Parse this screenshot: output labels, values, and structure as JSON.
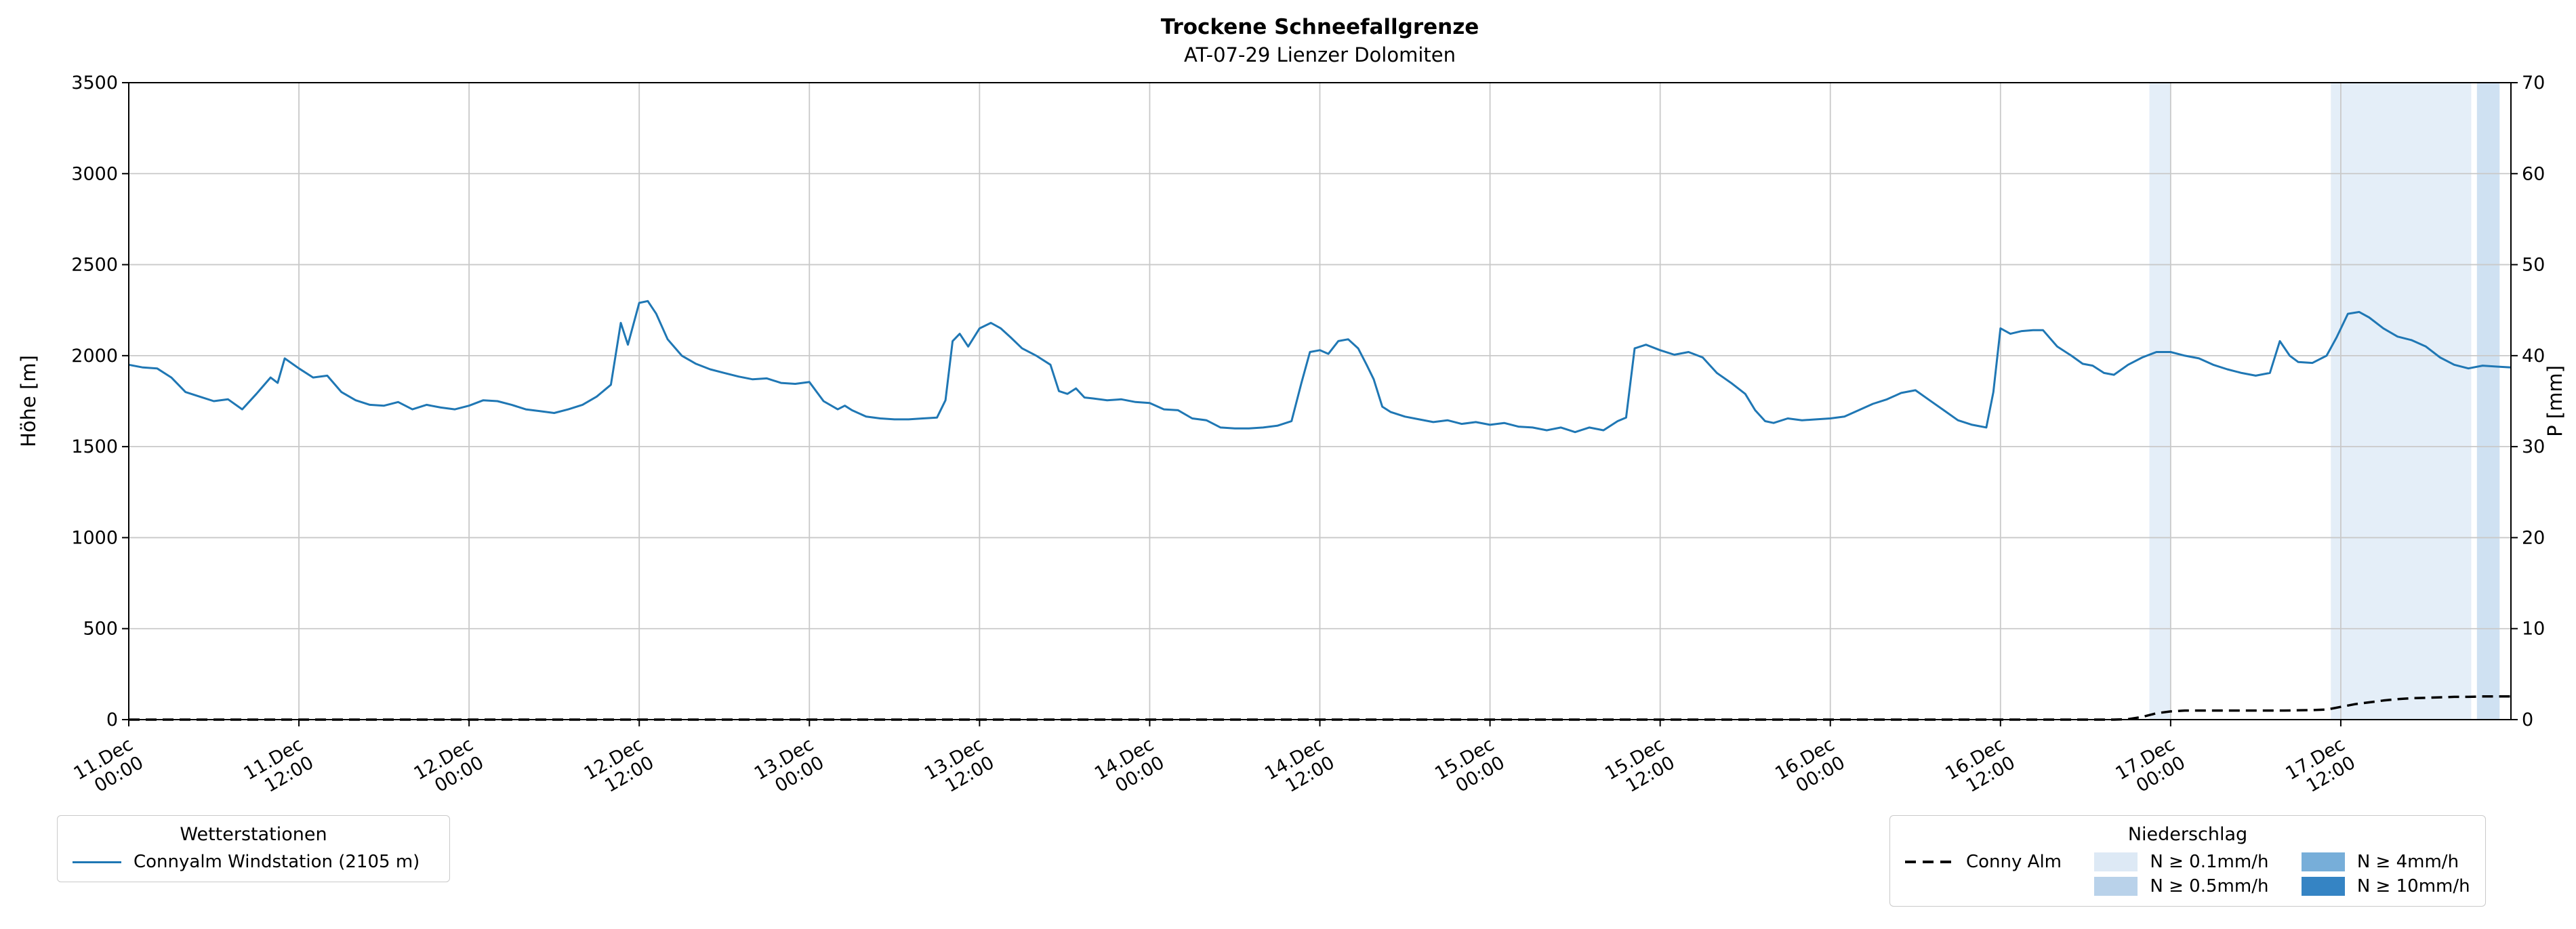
{
  "chart": {
    "title": "Trockene Schneefallgrenze",
    "subtitle": "AT-07-29 Lienzer Dolomiten"
  },
  "axes": {
    "y_left_label": "Höhe [m]",
    "y_right_label": "P [mm]"
  },
  "legend_stations": {
    "title": "Wetterstationen",
    "items": [
      {
        "label": "Connyalm Windstation (2105 m)",
        "color": "#1f77b4"
      }
    ]
  },
  "legend_precip": {
    "title": "Niederschlag",
    "line_item": {
      "label": "Conny Alm",
      "color": "#000000"
    },
    "patches": [
      {
        "label": "N ≥ 0.1mm/h",
        "color": "#dde9f5"
      },
      {
        "label": "N ≥ 0.5mm/h",
        "color": "#b9d2ea"
      },
      {
        "label": "N ≥ 4mm/h",
        "color": "#77aed9"
      },
      {
        "label": "N ≥ 10mm/h",
        "color": "#3584c4"
      }
    ]
  },
  "chart_data": {
    "type": "line",
    "title": "Trockene Schneefallgrenze",
    "subtitle": "AT-07-29 Lienzer Dolomiten",
    "grid": true,
    "legend_position": "below",
    "x_unit": "hours since 11.Dec 00:00",
    "x_range": [
      0,
      168
    ],
    "x_ticks": [
      {
        "h": 0,
        "label": "11.Dec 00:00"
      },
      {
        "h": 12,
        "label": "11.Dec 12:00"
      },
      {
        "h": 24,
        "label": "12.Dec 00:00"
      },
      {
        "h": 36,
        "label": "12.Dec 12:00"
      },
      {
        "h": 48,
        "label": "13.Dec 00:00"
      },
      {
        "h": 60,
        "label": "13.Dec 12:00"
      },
      {
        "h": 72,
        "label": "14.Dec 00:00"
      },
      {
        "h": 84,
        "label": "14.Dec 12:00"
      },
      {
        "h": 96,
        "label": "15.Dec 00:00"
      },
      {
        "h": 108,
        "label": "15.Dec 12:00"
      },
      {
        "h": 120,
        "label": "16.Dec 00:00"
      },
      {
        "h": 132,
        "label": "16.Dec 12:00"
      },
      {
        "h": 144,
        "label": "17.Dec 00:00"
      },
      {
        "h": 156,
        "label": "17.Dec 12:00"
      }
    ],
    "y_left": {
      "label": "Höhe [m]",
      "range": [
        0,
        3500
      ],
      "tick_step": 500
    },
    "y_right": {
      "label": "P [mm]",
      "range": [
        0,
        70
      ],
      "tick_step": 10
    },
    "series": [
      {
        "name": "Connyalm Windstation (2105 m)",
        "axis": "left",
        "unit": "m",
        "color": "#1f77b4",
        "style": "solid",
        "points": [
          [
            0,
            1950
          ],
          [
            1,
            1935
          ],
          [
            2,
            1930
          ],
          [
            3,
            1880
          ],
          [
            4,
            1800
          ],
          [
            5,
            1775
          ],
          [
            6,
            1750
          ],
          [
            7,
            1760
          ],
          [
            8,
            1705
          ],
          [
            9,
            1790
          ],
          [
            10,
            1880
          ],
          [
            10.5,
            1850
          ],
          [
            11,
            1985
          ],
          [
            12,
            1930
          ],
          [
            13,
            1880
          ],
          [
            14,
            1890
          ],
          [
            15,
            1800
          ],
          [
            16,
            1755
          ],
          [
            17,
            1730
          ],
          [
            18,
            1725
          ],
          [
            19,
            1745
          ],
          [
            20,
            1705
          ],
          [
            21,
            1730
          ],
          [
            22,
            1715
          ],
          [
            23,
            1705
          ],
          [
            24,
            1725
          ],
          [
            25,
            1755
          ],
          [
            26,
            1750
          ],
          [
            27,
            1730
          ],
          [
            28,
            1705
          ],
          [
            29,
            1695
          ],
          [
            30,
            1685
          ],
          [
            31,
            1705
          ],
          [
            32,
            1730
          ],
          [
            33,
            1775
          ],
          [
            34,
            1840
          ],
          [
            34.7,
            2180
          ],
          [
            35.2,
            2060
          ],
          [
            36,
            2290
          ],
          [
            36.6,
            2300
          ],
          [
            37.2,
            2230
          ],
          [
            38,
            2090
          ],
          [
            39,
            2000
          ],
          [
            40,
            1955
          ],
          [
            41,
            1925
          ],
          [
            42,
            1905
          ],
          [
            43,
            1885
          ],
          [
            44,
            1870
          ],
          [
            45,
            1875
          ],
          [
            46,
            1850
          ],
          [
            47,
            1845
          ],
          [
            48,
            1855
          ],
          [
            49,
            1750
          ],
          [
            50,
            1705
          ],
          [
            50.5,
            1725
          ],
          [
            51,
            1700
          ],
          [
            52,
            1665
          ],
          [
            53,
            1655
          ],
          [
            54,
            1650
          ],
          [
            55,
            1650
          ],
          [
            56,
            1655
          ],
          [
            57,
            1660
          ],
          [
            57.6,
            1755
          ],
          [
            58.1,
            2080
          ],
          [
            58.6,
            2120
          ],
          [
            59.2,
            2050
          ],
          [
            60,
            2150
          ],
          [
            60.8,
            2180
          ],
          [
            61.5,
            2150
          ],
          [
            62.2,
            2100
          ],
          [
            63,
            2040
          ],
          [
            64,
            2000
          ],
          [
            65,
            1950
          ],
          [
            65.6,
            1805
          ],
          [
            66.2,
            1790
          ],
          [
            66.8,
            1820
          ],
          [
            67.4,
            1770
          ],
          [
            68,
            1765
          ],
          [
            69,
            1755
          ],
          [
            70,
            1760
          ],
          [
            71,
            1745
          ],
          [
            72,
            1740
          ],
          [
            73,
            1705
          ],
          [
            74,
            1700
          ],
          [
            75,
            1655
          ],
          [
            76,
            1645
          ],
          [
            77,
            1605
          ],
          [
            78,
            1600
          ],
          [
            79,
            1600
          ],
          [
            80,
            1605
          ],
          [
            81,
            1615
          ],
          [
            82,
            1640
          ],
          [
            82.7,
            1850
          ],
          [
            83.3,
            2020
          ],
          [
            84,
            2030
          ],
          [
            84.6,
            2010
          ],
          [
            85.3,
            2080
          ],
          [
            86,
            2090
          ],
          [
            86.7,
            2040
          ],
          [
            87.3,
            1950
          ],
          [
            87.8,
            1870
          ],
          [
            88.4,
            1720
          ],
          [
            89,
            1690
          ],
          [
            90,
            1665
          ],
          [
            91,
            1650
          ],
          [
            92,
            1635
          ],
          [
            93,
            1645
          ],
          [
            94,
            1625
          ],
          [
            95,
            1635
          ],
          [
            96,
            1620
          ],
          [
            97,
            1630
          ],
          [
            98,
            1610
          ],
          [
            99,
            1605
          ],
          [
            100,
            1590
          ],
          [
            101,
            1605
          ],
          [
            102,
            1580
          ],
          [
            103,
            1605
          ],
          [
            104,
            1590
          ],
          [
            105,
            1640
          ],
          [
            105.6,
            1660
          ],
          [
            106.2,
            2040
          ],
          [
            107,
            2060
          ],
          [
            108,
            2030
          ],
          [
            109,
            2005
          ],
          [
            110,
            2020
          ],
          [
            111,
            1990
          ],
          [
            112,
            1905
          ],
          [
            113,
            1850
          ],
          [
            114,
            1790
          ],
          [
            114.7,
            1700
          ],
          [
            115.4,
            1640
          ],
          [
            116,
            1630
          ],
          [
            117,
            1655
          ],
          [
            118,
            1645
          ],
          [
            119,
            1650
          ],
          [
            120,
            1655
          ],
          [
            121,
            1665
          ],
          [
            122,
            1700
          ],
          [
            123,
            1735
          ],
          [
            124,
            1760
          ],
          [
            125,
            1795
          ],
          [
            126,
            1810
          ],
          [
            127,
            1755
          ],
          [
            128,
            1700
          ],
          [
            129,
            1645
          ],
          [
            130,
            1620
          ],
          [
            131,
            1605
          ],
          [
            131.5,
            1800
          ],
          [
            132,
            2150
          ],
          [
            132.7,
            2120
          ],
          [
            133.5,
            2135
          ],
          [
            134.3,
            2140
          ],
          [
            135,
            2140
          ],
          [
            136,
            2050
          ],
          [
            137,
            2000
          ],
          [
            137.8,
            1955
          ],
          [
            138.5,
            1945
          ],
          [
            139.3,
            1905
          ],
          [
            140,
            1895
          ],
          [
            141,
            1950
          ],
          [
            142,
            1990
          ],
          [
            143,
            2020
          ],
          [
            144,
            2020
          ],
          [
            145,
            2000
          ],
          [
            146,
            1985
          ],
          [
            147,
            1950
          ],
          [
            148,
            1925
          ],
          [
            149,
            1905
          ],
          [
            150,
            1890
          ],
          [
            151,
            1905
          ],
          [
            151.7,
            2080
          ],
          [
            152.4,
            2000
          ],
          [
            153,
            1965
          ],
          [
            154,
            1960
          ],
          [
            155,
            2000
          ],
          [
            155.7,
            2100
          ],
          [
            156.5,
            2230
          ],
          [
            157.3,
            2240
          ],
          [
            158,
            2210
          ],
          [
            159,
            2150
          ],
          [
            160,
            2105
          ],
          [
            161,
            2085
          ],
          [
            162,
            2050
          ],
          [
            163,
            1990
          ],
          [
            164,
            1950
          ],
          [
            165,
            1930
          ],
          [
            166,
            1945
          ],
          [
            167,
            1940
          ],
          [
            168,
            1935
          ]
        ]
      },
      {
        "name": "Conny Alm",
        "axis": "right",
        "unit": "mm",
        "color": "#000000",
        "style": "dashed",
        "points": [
          [
            0,
            0
          ],
          [
            20,
            0
          ],
          [
            40,
            0
          ],
          [
            60,
            0
          ],
          [
            80,
            0
          ],
          [
            100,
            0
          ],
          [
            120,
            0
          ],
          [
            136,
            0
          ],
          [
            138,
            0
          ],
          [
            140,
            0
          ],
          [
            141,
            0.05
          ],
          [
            142,
            0.3
          ],
          [
            143,
            0.7
          ],
          [
            144,
            0.9
          ],
          [
            145,
            1.0
          ],
          [
            146,
            1.0
          ],
          [
            148,
            1.0
          ],
          [
            150,
            1.0
          ],
          [
            152,
            1.0
          ],
          [
            154,
            1.05
          ],
          [
            155,
            1.1
          ],
          [
            156,
            1.4
          ],
          [
            157,
            1.7
          ],
          [
            158,
            1.9
          ],
          [
            159,
            2.1
          ],
          [
            160,
            2.25
          ],
          [
            161,
            2.35
          ],
          [
            162,
            2.4
          ],
          [
            163,
            2.45
          ],
          [
            164,
            2.5
          ],
          [
            165,
            2.5
          ],
          [
            166,
            2.55
          ],
          [
            167,
            2.55
          ],
          [
            168,
            2.55
          ]
        ]
      }
    ],
    "precip_bands": [
      {
        "from_h": 142.5,
        "to_h": 144.0,
        "class": "N ≥ 0.1mm/h",
        "color": "#e4eef8"
      },
      {
        "from_h": 155.3,
        "to_h": 165.2,
        "class": "N ≥ 0.1mm/h",
        "color": "#e4eef8"
      },
      {
        "from_h": 165.6,
        "to_h": 167.2,
        "class": "N ≥ 0.5mm/h",
        "color": "#cfe1f2"
      }
    ]
  }
}
